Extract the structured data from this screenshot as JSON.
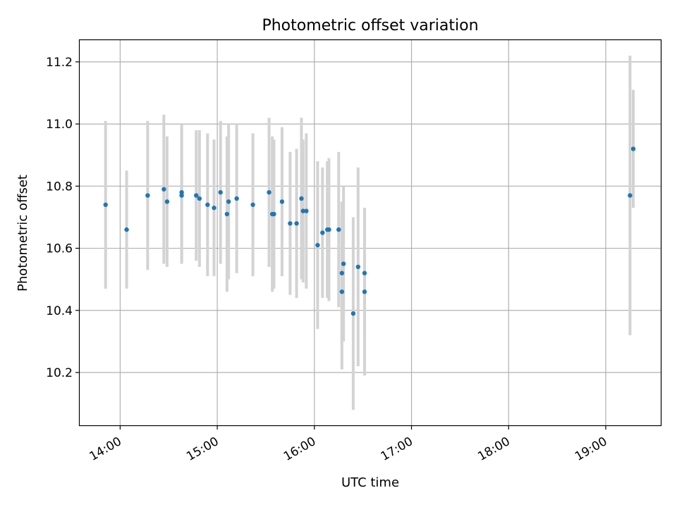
{
  "chart_data": {
    "type": "scatter",
    "title": "Photometric offset variation",
    "xlabel": "UTC time",
    "ylabel": "Photometric offset",
    "x_ticks": [
      "14:00",
      "15:00",
      "16:00",
      "17:00",
      "18:00",
      "19:00"
    ],
    "y_ticks": [
      "10.2",
      "10.4",
      "10.6",
      "10.8",
      "11.0",
      "11.2"
    ],
    "xlim": [
      "13:35",
      "19:34"
    ],
    "ylim": [
      10.03,
      11.27
    ],
    "grid": true,
    "colors": {
      "marker": "#1f77b4",
      "errorbar": "#d3d3d3"
    },
    "points": [
      {
        "x": "13:51",
        "y": 10.74,
        "yerr": 0.27
      },
      {
        "x": "14:04",
        "y": 10.66,
        "yerr": 0.19
      },
      {
        "x": "14:17",
        "y": 10.77,
        "yerr": 0.24
      },
      {
        "x": "14:27",
        "y": 10.79,
        "yerr": 0.24
      },
      {
        "x": "14:29",
        "y": 10.75,
        "yerr": 0.21
      },
      {
        "x": "14:38",
        "y": 10.78,
        "yerr": 0.22
      },
      {
        "x": "14:38",
        "y": 10.77,
        "yerr": 0.22
      },
      {
        "x": "14:47",
        "y": 10.77,
        "yerr": 0.21
      },
      {
        "x": "14:49",
        "y": 10.76,
        "yerr": 0.22
      },
      {
        "x": "14:54",
        "y": 10.74,
        "yerr": 0.23
      },
      {
        "x": "14:58",
        "y": 10.73,
        "yerr": 0.22
      },
      {
        "x": "15:02",
        "y": 10.78,
        "yerr": 0.23
      },
      {
        "x": "15:06",
        "y": 10.71,
        "yerr": 0.25
      },
      {
        "x": "15:07",
        "y": 10.75,
        "yerr": 0.25
      },
      {
        "x": "15:12",
        "y": 10.76,
        "yerr": 0.24
      },
      {
        "x": "15:22",
        "y": 10.74,
        "yerr": 0.23
      },
      {
        "x": "15:32",
        "y": 10.78,
        "yerr": 0.24
      },
      {
        "x": "15:34",
        "y": 10.71,
        "yerr": 0.25
      },
      {
        "x": "15:35",
        "y": 10.71,
        "yerr": 0.24
      },
      {
        "x": "15:40",
        "y": 10.75,
        "yerr": 0.24
      },
      {
        "x": "15:45",
        "y": 10.68,
        "yerr": 0.23
      },
      {
        "x": "15:49",
        "y": 10.68,
        "yerr": 0.24
      },
      {
        "x": "15:52",
        "y": 10.76,
        "yerr": 0.26
      },
      {
        "x": "15:53",
        "y": 10.72,
        "yerr": 0.23
      },
      {
        "x": "15:55",
        "y": 10.72,
        "yerr": 0.25
      },
      {
        "x": "16:02",
        "y": 10.61,
        "yerr": 0.27
      },
      {
        "x": "16:05",
        "y": 10.65,
        "yerr": 0.21
      },
      {
        "x": "16:08",
        "y": 10.66,
        "yerr": 0.22
      },
      {
        "x": "16:09",
        "y": 10.66,
        "yerr": 0.23
      },
      {
        "x": "16:15",
        "y": 10.66,
        "yerr": 0.25
      },
      {
        "x": "16:17",
        "y": 10.52,
        "yerr": 0.23
      },
      {
        "x": "16:17",
        "y": 10.46,
        "yerr": 0.25
      },
      {
        "x": "16:18",
        "y": 10.55,
        "yerr": 0.25
      },
      {
        "x": "16:24",
        "y": 10.39,
        "yerr": 0.31
      },
      {
        "x": "16:27",
        "y": 10.54,
        "yerr": 0.32
      },
      {
        "x": "16:31",
        "y": 10.46,
        "yerr": 0.27
      },
      {
        "x": "16:31",
        "y": 10.52,
        "yerr": 0.21
      },
      {
        "x": "19:15",
        "y": 10.77,
        "yerr": 0.45
      },
      {
        "x": "19:17",
        "y": 10.92,
        "yerr": 0.19
      }
    ]
  }
}
